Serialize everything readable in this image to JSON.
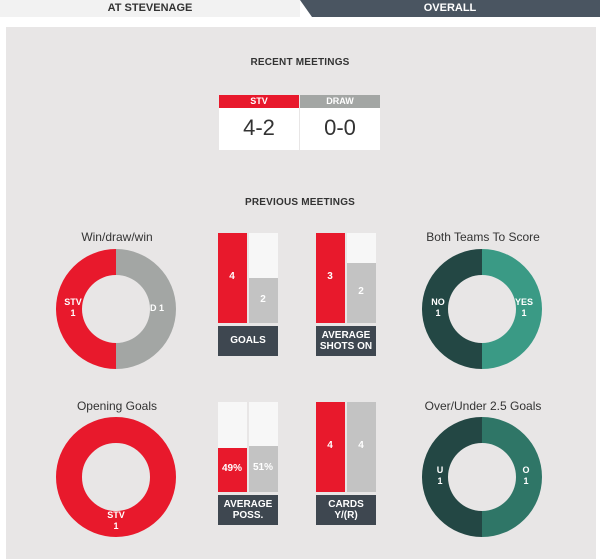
{
  "tabs": {
    "home": "AT STEVENAGE",
    "overall": "OVERALL"
  },
  "recent": {
    "heading": "RECENT MEETINGS",
    "boxes": [
      {
        "header": "STV",
        "score": "4-2",
        "color": "#e8192c"
      },
      {
        "header": "DRAW",
        "score": "0-0",
        "color": "#a3a6a4"
      }
    ]
  },
  "previous": {
    "heading": "PREVIOUS MEETINGS"
  },
  "donuts": {
    "wdw": {
      "title": "Win/draw/win",
      "left_label": "STV",
      "left_value": "1",
      "right_label": "D 1",
      "left_share": 0.5,
      "colors": [
        "#e8192c",
        "#a3a6a4"
      ]
    },
    "btts": {
      "title": "Both Teams To Score",
      "left_label": "NO",
      "left_value": "1",
      "right_label": "YES",
      "right_value": "1",
      "left_share": 0.5,
      "colors": [
        "#234744",
        "#3a9a85"
      ]
    },
    "opening": {
      "title": "Opening Goals",
      "bottom_label": "STV",
      "bottom_value": "1",
      "left_share": 1,
      "colors": [
        "#e8192c",
        "#e8192c"
      ]
    },
    "overunder": {
      "title": "Over/Under 2.5 Goals",
      "left_label": "U",
      "left_value": "1",
      "right_label": "O",
      "right_value": "1",
      "left_share": 0.5,
      "colors": [
        "#234744",
        "#2f7667"
      ]
    }
  },
  "stats": {
    "goals": {
      "label": "GOALS",
      "left": "4",
      "right": "2",
      "left_share": 1,
      "right_share": 0.5
    },
    "shots": {
      "label_line1": "AVERAGE",
      "label_line2": "SHOTS ON",
      "left": "3",
      "right": "2",
      "left_share": 1,
      "right_share": 0.6667
    },
    "poss": {
      "label_line1": "AVERAGE",
      "label_line2": "POSS.",
      "left": "49%",
      "right": "51%",
      "left_share": 0.49,
      "right_share": 0.51
    },
    "cards": {
      "label_line1": "CARDS",
      "label_line2": "Y/(R)",
      "left": "4",
      "right": "4",
      "left_share": 1,
      "right_share": 1
    }
  },
  "colors": {
    "red": "#e8192c",
    "grey": "#c3c3c3",
    "bar_bg": "#f7f7f7",
    "label_bg": "#3e4750"
  }
}
